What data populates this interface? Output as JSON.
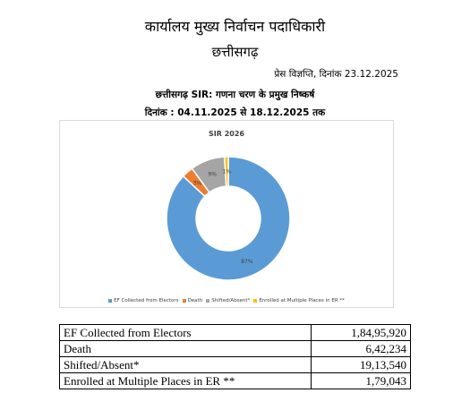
{
  "header": {
    "office_title": "कार्यालय मुख्य निर्वाचन पदाधिकारी",
    "state": "छत्तीसगढ़",
    "press_release": "प्रेस विज्ञप्ति, दिनांक 23.12.2025",
    "subtitle": "छत्तीसगढ़ SIR: गणना चरण के प्रमुख निष्कर्ष",
    "date_range": "दिनांक : 04.11.2025 से 18.12.2025 तक"
  },
  "chart_data": {
    "type": "pie",
    "donut": true,
    "title": "SIR 2026",
    "legend_position": "bottom",
    "slices": [
      {
        "label": "EF Collected from Electors",
        "value": 87,
        "display": "87%",
        "color": "#5b9bd5"
      },
      {
        "label": "Death",
        "value": 3,
        "display": "3%",
        "color": "#ed7d31"
      },
      {
        "label": "Shifted/Absent*",
        "value": 9,
        "display": "9%",
        "color": "#a5a5a5"
      },
      {
        "label": "Enrolled at Multiple Places in ER **",
        "value": 1,
        "display": "1%",
        "color": "#ffc000"
      }
    ]
  },
  "table": {
    "rows": [
      {
        "label": "EF Collected from Electors",
        "value": "1,84,95,920"
      },
      {
        "label": "Death",
        "value": "6,42,234"
      },
      {
        "label": "Shifted/Absent*",
        "value": "19,13,540"
      },
      {
        "label": "Enrolled at Multiple Places in ER **",
        "value": "1,79,043"
      }
    ]
  }
}
